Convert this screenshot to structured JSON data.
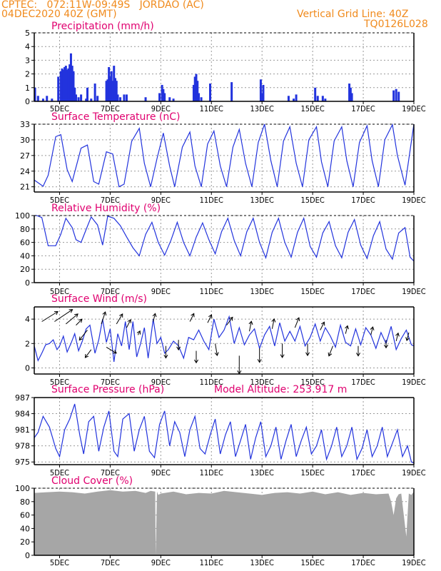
{
  "header": {
    "line1": "CPTEC:   072:11W-09:49S   JORDAO (AC)",
    "line2": "04DEC2020 40Z (GMT)",
    "right1": "Vertical Grid Line: 40Z",
    "right2": "TQ0126L028"
  },
  "colors": {
    "header": "#f08a1c",
    "title": "#e0006f",
    "series": "#2233dd",
    "cloud": "#a6a6a6",
    "grid": "#999999"
  },
  "x_axis": {
    "range_days": [
      0,
      15
    ],
    "ticks": [
      {
        "day": 1,
        "label": "5DEC"
      },
      {
        "day": 3,
        "label": "7DEC"
      },
      {
        "day": 5,
        "label": "9DEC"
      },
      {
        "day": 7,
        "label": "11DEC"
      },
      {
        "day": 9,
        "label": "13DEC"
      },
      {
        "day": 11,
        "label": "15DEC"
      },
      {
        "day": 13,
        "label": "17DEC"
      },
      {
        "day": 15,
        "label": "19DEC"
      }
    ]
  },
  "chart_data": [
    {
      "id": "precip",
      "type": "bar",
      "title": "Precipitation (mm/h)",
      "ylim": [
        0,
        5
      ],
      "yticks": [
        0,
        1,
        2,
        3,
        4,
        5
      ],
      "x": [
        0.03,
        0.15,
        0.35,
        0.5,
        0.7,
        0.95,
        1.05,
        1.1,
        1.15,
        1.2,
        1.25,
        1.3,
        1.35,
        1.4,
        1.45,
        1.5,
        1.55,
        1.6,
        1.65,
        1.75,
        1.85,
        2.05,
        2.1,
        2.25,
        2.4,
        2.5,
        2.85,
        2.9,
        2.95,
        3.0,
        3.05,
        3.1,
        3.15,
        3.2,
        3.25,
        3.3,
        3.4,
        3.55,
        3.65,
        4.4,
        4.95,
        5.05,
        5.1,
        5.15,
        5.35,
        5.5,
        6.3,
        6.35,
        6.4,
        6.45,
        6.5,
        6.6,
        6.95,
        7.8,
        8.95,
        9.0,
        9.05,
        10.05,
        10.25,
        10.35,
        11.1,
        11.2,
        11.4,
        11.5,
        12.45,
        12.5,
        12.55,
        14.2,
        14.3,
        14.4
      ],
      "values": [
        1.0,
        0.4,
        0.2,
        0.4,
        0.2,
        1.8,
        2.2,
        2.4,
        2.3,
        2.5,
        2.6,
        2.3,
        2.4,
        2.7,
        3.5,
        2.6,
        2.2,
        1.0,
        0.5,
        0.3,
        0.5,
        0.2,
        1.0,
        0.2,
        1.3,
        0.4,
        1.5,
        1.6,
        2.5,
        1.8,
        2.2,
        1.5,
        2.6,
        1.7,
        1.5,
        0.5,
        0.3,
        0.5,
        0.5,
        0.3,
        0.6,
        1.2,
        0.9,
        0.6,
        0.3,
        0.2,
        1.2,
        1.8,
        2.0,
        1.5,
        0.6,
        0.3,
        1.3,
        1.4,
        1.6,
        0.6,
        1.2,
        0.4,
        0.2,
        0.5,
        1.0,
        0.4,
        0.4,
        0.2,
        1.3,
        1.0,
        0.6,
        0.8,
        0.9,
        0.7
      ]
    },
    {
      "id": "temp",
      "type": "line",
      "title": "Surface Temperature (nC)",
      "ylim": [
        20,
        33
      ],
      "yticks": [
        21,
        24,
        27,
        30,
        33
      ],
      "x": [
        0,
        0.35,
        0.55,
        0.85,
        1.05,
        1.3,
        1.5,
        1.85,
        2.1,
        2.35,
        2.55,
        2.85,
        3.1,
        3.35,
        3.55,
        3.85,
        4.15,
        4.35,
        4.6,
        4.85,
        5.1,
        5.35,
        5.55,
        5.85,
        6.15,
        6.35,
        6.6,
        6.85,
        7.1,
        7.35,
        7.6,
        7.85,
        8.1,
        8.35,
        8.6,
        8.85,
        9.1,
        9.35,
        9.6,
        9.85,
        10.1,
        10.35,
        10.6,
        10.85,
        11.15,
        11.35,
        11.6,
        11.85,
        12.15,
        12.35,
        12.6,
        12.85,
        13.15,
        13.35,
        13.6,
        13.85,
        14.15,
        14.35,
        14.65,
        14.85,
        15
      ],
      "values": [
        22.3,
        21.1,
        23.2,
        30.6,
        31.0,
        24.3,
        22.0,
        28.4,
        29.0,
        22.0,
        21.5,
        27.7,
        27.3,
        21.0,
        21.5,
        29.7,
        32.2,
        25.5,
        21.0,
        26.4,
        31.3,
        25.0,
        21.0,
        28.6,
        31.5,
        25.0,
        21.0,
        29.2,
        31.7,
        25.0,
        21.0,
        28.6,
        32.0,
        25.5,
        21.0,
        29.5,
        33.0,
        26.0,
        21.0,
        29.8,
        32.5,
        25.5,
        21.0,
        30.0,
        32.5,
        25.8,
        21.0,
        29.8,
        32.5,
        26.0,
        21.0,
        29.5,
        32.7,
        26.0,
        21.0,
        30.0,
        32.9,
        27.0,
        21.3,
        28.0,
        33.0
      ]
    },
    {
      "id": "rh",
      "type": "line",
      "title": "Relative Humidity (%)",
      "ylim": [
        0,
        100
      ],
      "yticks": [
        0,
        20,
        40,
        60,
        80,
        100
      ],
      "x": [
        0,
        0.1,
        0.3,
        0.55,
        0.85,
        1.05,
        1.25,
        1.5,
        1.65,
        1.85,
        2.1,
        2.25,
        2.5,
        2.7,
        2.9,
        3.15,
        3.4,
        3.65,
        3.9,
        4.15,
        4.4,
        4.65,
        4.9,
        5.15,
        5.4,
        5.65,
        5.9,
        6.15,
        6.4,
        6.65,
        6.9,
        7.15,
        7.4,
        7.65,
        7.9,
        8.15,
        8.4,
        8.65,
        8.9,
        9.15,
        9.4,
        9.65,
        9.9,
        10.15,
        10.4,
        10.65,
        10.9,
        11.15,
        11.4,
        11.65,
        11.9,
        12.15,
        12.4,
        12.65,
        12.9,
        13.15,
        13.4,
        13.65,
        13.9,
        14.15,
        14.4,
        14.65,
        14.85,
        15
      ],
      "values": [
        100,
        100,
        97,
        55,
        55,
        72,
        96,
        82,
        64,
        60,
        84,
        98,
        86,
        56,
        99,
        96,
        85,
        68,
        52,
        40,
        72,
        90,
        60,
        41,
        63,
        90,
        60,
        40,
        68,
        89,
        64,
        43,
        76,
        96,
        63,
        40,
        76,
        96,
        60,
        37,
        75,
        96,
        60,
        38,
        75,
        96,
        54,
        38,
        74,
        91,
        55,
        37,
        75,
        94,
        56,
        36,
        70,
        91,
        50,
        35,
        74,
        82,
        38,
        32
      ]
    },
    {
      "id": "wind",
      "type": "line",
      "title": "Surface Wind (m/s)",
      "ylim": [
        -0.5,
        5
      ],
      "yticks": [
        0,
        2,
        4
      ],
      "x": [
        0,
        0.15,
        0.3,
        0.45,
        0.6,
        0.75,
        0.9,
        1.0,
        1.15,
        1.3,
        1.45,
        1.6,
        1.75,
        1.9,
        2.05,
        2.2,
        2.4,
        2.55,
        2.7,
        2.85,
        3.0,
        3.15,
        3.3,
        3.45,
        3.6,
        3.75,
        3.9,
        4.05,
        4.2,
        4.35,
        4.5,
        4.7,
        4.85,
        5.0,
        5.15,
        5.3,
        5.5,
        5.7,
        5.9,
        6.1,
        6.3,
        6.5,
        6.7,
        6.9,
        7.1,
        7.3,
        7.5,
        7.7,
        7.9,
        8.1,
        8.3,
        8.5,
        8.7,
        8.9,
        9.1,
        9.3,
        9.5,
        9.7,
        9.9,
        10.1,
        10.3,
        10.5,
        10.7,
        10.9,
        11.1,
        11.3,
        11.5,
        11.7,
        11.9,
        12.1,
        12.3,
        12.5,
        12.7,
        12.9,
        13.1,
        13.3,
        13.5,
        13.7,
        13.9,
        14.1,
        14.3,
        14.5,
        14.7,
        14.9,
        15
      ],
      "values": [
        1.8,
        0.6,
        1.2,
        1.9,
        2.0,
        2.3,
        1.5,
        1.8,
        2.6,
        1.3,
        2.0,
        2.8,
        1.4,
        2.2,
        3.2,
        3.5,
        1.2,
        2.3,
        4.0,
        2.1,
        3.2,
        0.5,
        2.8,
        1.8,
        3.8,
        1.5,
        3.8,
        0.9,
        2.0,
        3.3,
        0.8,
        4.0,
        2.0,
        2.5,
        1.2,
        1.5,
        2.2,
        1.8,
        0.8,
        2.5,
        2.3,
        3.1,
        2.2,
        1.5,
        4.0,
        2.5,
        3.1,
        4.2,
        2.0,
        3.3,
        1.9,
        2.7,
        3.2,
        1.6,
        2.7,
        3.4,
        1.8,
        3.7,
        2.2,
        3.0,
        2.2,
        3.4,
        1.8,
        2.5,
        3.6,
        2.2,
        3.3,
        2.6,
        1.7,
        3.5,
        2.1,
        1.8,
        3.2,
        1.9,
        3.3,
        2.7,
        1.6,
        2.9,
        2.0,
        3.4,
        1.5,
        2.4,
        3.1,
        1.9,
        1.8
      ]
    },
    {
      "id": "press",
      "type": "line",
      "title": "Surface Pressure (hPa)",
      "annotation": "Model Altitude: 253.917 m",
      "ylim": [
        974.5,
        987
      ],
      "yticks": [
        975,
        978,
        981,
        984,
        987
      ],
      "x": [
        0,
        0.15,
        0.35,
        0.6,
        0.85,
        1.0,
        1.2,
        1.4,
        1.6,
        1.8,
        1.95,
        2.15,
        2.35,
        2.55,
        2.75,
        2.95,
        3.15,
        3.3,
        3.5,
        3.75,
        3.95,
        4.15,
        4.35,
        4.55,
        4.75,
        4.95,
        5.15,
        5.35,
        5.55,
        5.75,
        5.95,
        6.15,
        6.35,
        6.55,
        6.75,
        6.95,
        7.15,
        7.35,
        7.55,
        7.75,
        7.95,
        8.15,
        8.35,
        8.55,
        8.75,
        8.95,
        9.15,
        9.35,
        9.55,
        9.75,
        9.95,
        10.15,
        10.35,
        10.55,
        10.75,
        10.95,
        11.15,
        11.35,
        11.55,
        11.75,
        11.95,
        12.15,
        12.35,
        12.55,
        12.75,
        12.95,
        13.15,
        13.35,
        13.55,
        13.75,
        13.95,
        14.15,
        14.35,
        14.55,
        14.75,
        14.9,
        15
      ],
      "values": [
        979.5,
        980.5,
        983.5,
        981.5,
        977.5,
        976.0,
        981.0,
        983.0,
        985.8,
        980.0,
        976.5,
        982.5,
        983.5,
        977.0,
        981.5,
        984.5,
        977.0,
        976.0,
        983.0,
        984.0,
        977.0,
        981.0,
        983.5,
        977.0,
        975.8,
        982.0,
        984.5,
        978.0,
        982.5,
        980.5,
        976.0,
        981.0,
        983.5,
        977.5,
        976.5,
        980.0,
        983.0,
        976.5,
        980.0,
        982.5,
        976.0,
        979.0,
        982.0,
        975.5,
        979.5,
        982.5,
        976.0,
        978.0,
        981.5,
        975.5,
        979.0,
        982.0,
        976.0,
        979.0,
        981.5,
        976.5,
        978.0,
        981.0,
        975.5,
        978.0,
        981.5,
        976.0,
        978.0,
        981.5,
        975.5,
        977.5,
        981.0,
        976.0,
        978.0,
        981.5,
        976.0,
        978.5,
        981.0,
        976.0,
        978.0,
        975.0,
        974.8
      ]
    },
    {
      "id": "cloud",
      "type": "area",
      "title": "Cloud Cover (%)",
      "ylim": [
        0,
        100
      ],
      "yticks": [
        0,
        20,
        40,
        60,
        80,
        100
      ],
      "x": [
        0,
        0.5,
        1.0,
        1.5,
        2.0,
        2.5,
        3.0,
        3.5,
        4.0,
        4.4,
        4.6,
        4.78,
        4.8,
        4.85,
        4.9,
        5.0,
        5.5,
        6.0,
        6.5,
        7.0,
        7.5,
        8.0,
        8.5,
        9.0,
        9.5,
        10.0,
        10.5,
        11.0,
        11.5,
        12.0,
        12.5,
        13.0,
        13.5,
        14.0,
        14.1,
        14.2,
        14.3,
        14.4,
        14.5,
        14.7,
        14.8,
        14.9,
        15
      ],
      "values": [
        93,
        94,
        95,
        94,
        92,
        95,
        97,
        95,
        96,
        93,
        96,
        95,
        0,
        95,
        90,
        92,
        95,
        91,
        93,
        92,
        96,
        94,
        92,
        90,
        93,
        94,
        92,
        95,
        91,
        94,
        90,
        93,
        91,
        92,
        80,
        60,
        85,
        91,
        92,
        28,
        92,
        90,
        95
      ]
    },
    {
      "id": "wind_vectors",
      "type": "scatter",
      "description_only": false,
      "x": [
        0.3,
        0.8,
        1.25,
        1.65,
        2.1,
        2.25,
        2.65,
        2.85,
        3.25,
        3.65,
        4.1,
        4.7,
        5.2,
        5.7,
        6.15,
        6.4,
        6.85,
        7.15,
        7.6,
        8.1,
        8.5,
        8.9,
        9.4,
        9.8,
        10.3,
        10.8,
        11.3,
        11.8,
        12.3,
        12.8,
        13.3,
        13.9,
        14.3,
        14.8
      ],
      "values": [
        3.8,
        3.8,
        3.6,
        3.5,
        3.1,
        1.5,
        3.6,
        1.7,
        3.6,
        3.3,
        2.7,
        3.8,
        1.8,
        2.3,
        3.8,
        1.4,
        3.7,
        2.0,
        3.5,
        1.0,
        3.0,
        1.6,
        3.2,
        2.0,
        3.3,
        2.0,
        3.1,
        1.8,
        2.8,
        1.8,
        2.7,
        2.3,
        2.2,
        2.9
      ],
      "u": [
        0.8,
        0.9,
        0.6,
        0.3,
        -0.4,
        -0.3,
        0.2,
        0.5,
        0.3,
        0.2,
        0.1,
        0.1,
        0.0,
        0.0,
        0.2,
        0.0,
        0.2,
        0.1,
        0.3,
        0.0,
        0.1,
        0.0,
        0.1,
        0.0,
        0.2,
        0.0,
        0.2,
        -0.2,
        0.1,
        0.0,
        0.1,
        0.0,
        0.1,
        -0.1
      ],
      "v": [
        0.5,
        0.6,
        0.5,
        0.3,
        -0.5,
        -0.4,
        0.6,
        -0.3,
        0.5,
        0.4,
        0.2,
        0.4,
        -0.6,
        -0.5,
        0.4,
        -0.6,
        0.4,
        -0.6,
        0.4,
        -0.9,
        0.5,
        -0.7,
        0.5,
        -0.7,
        0.5,
        -0.6,
        0.4,
        -0.5,
        0.4,
        -0.5,
        0.4,
        -0.4,
        0.4,
        -0.4
      ]
    }
  ]
}
